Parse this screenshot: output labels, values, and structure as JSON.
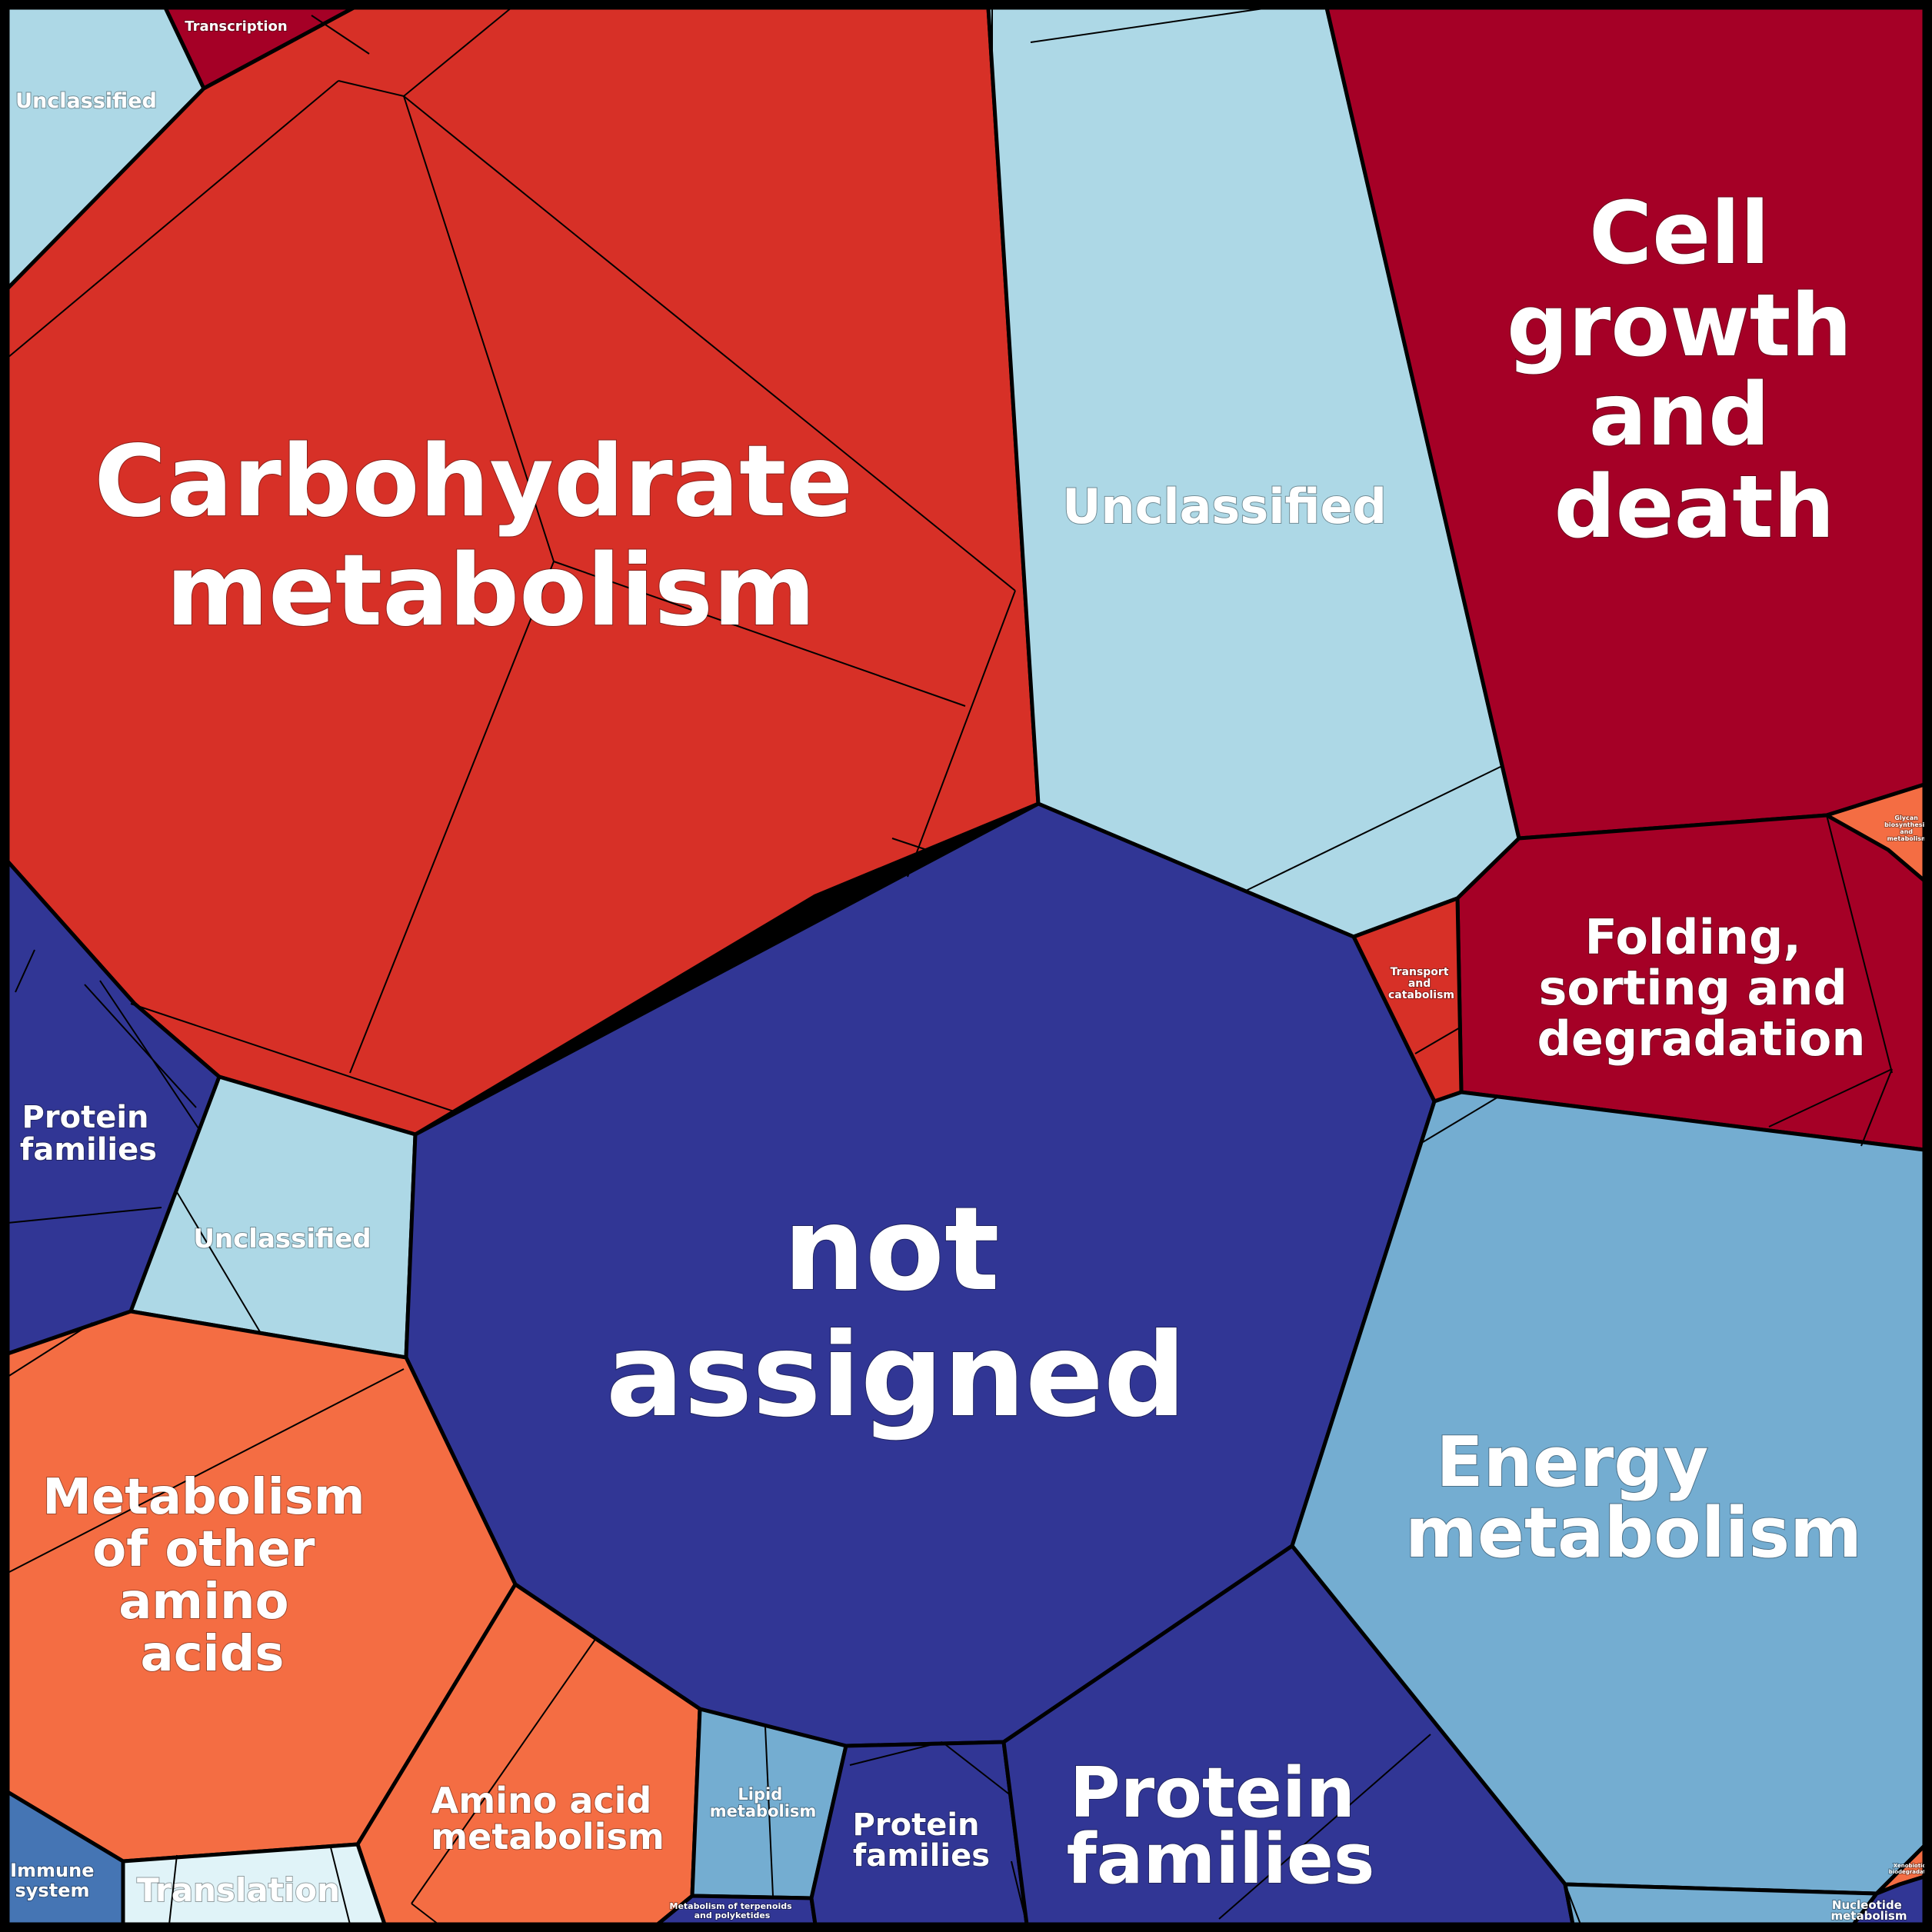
{
  "colors": {
    "unclassified": "#add8e6",
    "carbohydrate": "#d73027",
    "dark_red": "#a50026",
    "not_assigned": "#313695",
    "protein_families": "#313695",
    "energy": "#74add1",
    "orange": "#f46d43",
    "translation": "#e0f3f8",
    "immune": "#4575b4",
    "lipid": "#74add1",
    "border": "#000000"
  },
  "labels": {
    "transcription": "Transcription",
    "unclassified_top_left": "Unclassified",
    "carbohydrate": [
      "Carbohydrate",
      "metabolism"
    ],
    "unclassified_top": "Unclassified",
    "cell_growth": [
      "Cell",
      "growth",
      "and",
      "death"
    ],
    "folding": [
      "Folding,",
      "sorting and",
      "degradation"
    ],
    "transport": [
      "Transport",
      "and",
      "catabolism"
    ],
    "glycan": [
      "Glycan",
      "biosynthesis",
      "and",
      "metabolism"
    ],
    "protein_families_left": [
      "Protein",
      "families"
    ],
    "unclassified_left": "Unclassified",
    "not_assigned": [
      "not",
      "assigned"
    ],
    "energy": [
      "Energy",
      "metabolism"
    ],
    "metabolism_other_aa": [
      "Metabolism",
      "of other",
      "amino",
      "acids"
    ],
    "amino_acid": [
      "Amino acid",
      "metabolism"
    ],
    "lipid": [
      "Lipid",
      "metabolism"
    ],
    "protein_families_small": [
      "Protein",
      "families"
    ],
    "protein_families_big": [
      "Protein",
      "families"
    ],
    "terpenoids": [
      "Metabolism of terpenoids",
      "and polyketides"
    ],
    "immune": [
      "Immune",
      "system"
    ],
    "translation": "Translation",
    "xenobiotics": [
      "Xenobiotics",
      "biodegradation"
    ],
    "nucleotide": [
      "Nucleotide",
      "metabolism"
    ]
  }
}
